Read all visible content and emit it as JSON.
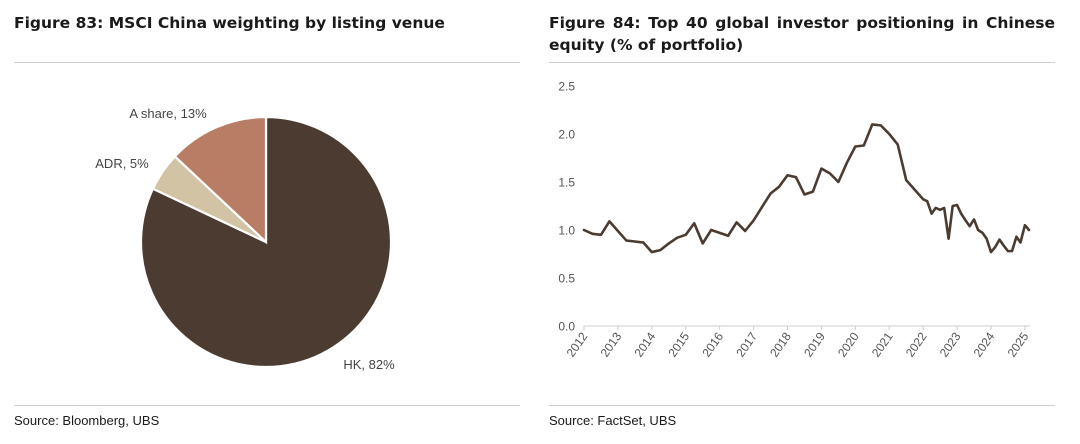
{
  "colors": {
    "hk": "#4b3b30",
    "a_share": "#b97d66",
    "adr": "#d2c3a5",
    "line": "#4b3b30",
    "axis_text": "#555555",
    "rule": "#cfcfcf"
  },
  "left_panel": {
    "title": "Figure 83: MSCI China weighting by listing venue",
    "source": "Source: Bloomberg, UBS"
  },
  "right_panel": {
    "title": "Figure 84: Top 40 global investor positioning in Chinese equity (% of portfolio)",
    "source": "Source: FactSet, UBS"
  },
  "chart_data": [
    {
      "type": "pie",
      "title": "Figure 83: MSCI China weighting by listing venue",
      "slices": [
        {
          "label": "HK",
          "value": 82,
          "display": "HK, 82%",
          "color": "#4b3b30"
        },
        {
          "label": "ADR",
          "value": 5,
          "display": "ADR, 5%",
          "color": "#d2c3a5"
        },
        {
          "label": "A share",
          "value": 13,
          "display": "A share, 13%",
          "color": "#b97d66"
        }
      ]
    },
    {
      "type": "line",
      "title": "Figure 84: Top 40 global investor positioning in Chinese equity (% of portfolio)",
      "xlabel": "",
      "ylabel": "",
      "ylim": [
        0,
        2.5
      ],
      "xlim": [
        2012,
        2025.15
      ],
      "yticks": [
        "0.0",
        "0.5",
        "1.0",
        "1.5",
        "2.0",
        "2.5"
      ],
      "xticks": [
        "2012",
        "2013",
        "2014",
        "2015",
        "2016",
        "2017",
        "2018",
        "2019",
        "2020",
        "2021",
        "2022",
        "2023",
        "2024",
        "2025"
      ],
      "grid": false,
      "series": [
        {
          "color": "#4b3b30",
          "x": [
            2012.0,
            2012.25,
            2012.5,
            2012.75,
            2013.0,
            2013.25,
            2013.5,
            2013.75,
            2014.0,
            2014.25,
            2014.5,
            2014.75,
            2015.0,
            2015.25,
            2015.5,
            2015.75,
            2016.0,
            2016.25,
            2016.5,
            2016.75,
            2017.0,
            2017.25,
            2017.5,
            2017.75,
            2018.0,
            2018.25,
            2018.5,
            2018.75,
            2019.0,
            2019.25,
            2019.5,
            2019.75,
            2020.0,
            2020.25,
            2020.5,
            2020.75,
            2021.0,
            2021.25,
            2021.5,
            2021.75,
            2022.0,
            2022.12,
            2022.25,
            2022.37,
            2022.5,
            2022.62,
            2022.75,
            2022.87,
            2023.0,
            2023.12,
            2023.25,
            2023.37,
            2023.5,
            2023.62,
            2023.75,
            2023.87,
            2024.0,
            2024.12,
            2024.25,
            2024.37,
            2024.5,
            2024.62,
            2024.75,
            2024.87,
            2025.0,
            2025.12
          ],
          "y": [
            1.0,
            0.96,
            0.95,
            1.09,
            0.99,
            0.89,
            0.88,
            0.87,
            0.77,
            0.79,
            0.86,
            0.92,
            0.95,
            1.07,
            0.86,
            1.0,
            0.97,
            0.94,
            1.08,
            0.99,
            1.1,
            1.24,
            1.38,
            1.45,
            1.57,
            1.55,
            1.37,
            1.4,
            1.64,
            1.59,
            1.5,
            1.7,
            1.87,
            1.88,
            2.1,
            2.09,
            2.0,
            1.89,
            1.52,
            1.42,
            1.32,
            1.3,
            1.17,
            1.23,
            1.21,
            1.23,
            0.91,
            1.25,
            1.26,
            1.17,
            1.1,
            1.04,
            1.11,
            1.0,
            0.97,
            0.91,
            0.77,
            0.82,
            0.9,
            0.84,
            0.78,
            0.78,
            0.93,
            0.87,
            1.05,
            1.0
          ]
        }
      ]
    }
  ]
}
